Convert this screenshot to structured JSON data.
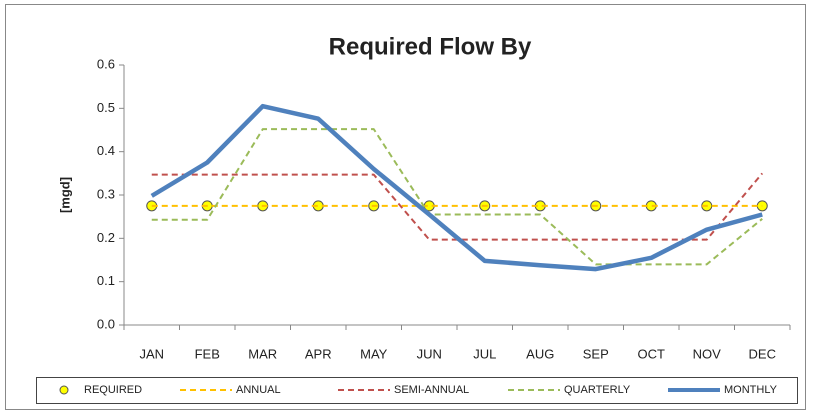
{
  "chart_data": {
    "type": "line",
    "title": "Required Flow By",
    "y_label": "[mgd]",
    "categories": [
      "JAN",
      "FEB",
      "MAR",
      "APR",
      "MAY",
      "JUN",
      "JUL",
      "AUG",
      "SEP",
      "OCT",
      "NOV",
      "DEC"
    ],
    "ylim": [
      0,
      0.6
    ],
    "yticks": [
      {
        "value": 0,
        "label": "0.0"
      },
      0.1,
      0.2,
      0.3,
      0.4,
      0.5,
      0.6
    ],
    "grid": false,
    "legend": "bottom",
    "series": [
      {
        "name": "REQUIRED",
        "color": "#ffff00",
        "marker": true,
        "values": [
          0.275,
          0.275,
          0.275,
          0.275,
          0.275,
          0.275,
          0.275,
          0.275,
          0.275,
          0.275,
          0.275,
          0.275
        ]
      },
      {
        "name": "ANNUAL",
        "color": "#ffc000",
        "dashed": true,
        "values": [
          0.275,
          0.275,
          0.275,
          0.275,
          0.275,
          0.275,
          0.275,
          0.275,
          0.275,
          0.275,
          0.275,
          0.275
        ]
      },
      {
        "name": "SEMI-ANNUAL",
        "color": "#c0504d",
        "dashed": true,
        "values": [
          0.347,
          0.347,
          0.347,
          0.347,
          0.347,
          0.197,
          0.197,
          0.197,
          0.197,
          0.197,
          0.197,
          0.35
        ]
      },
      {
        "name": "QUARTERLY",
        "color": "#9bbb59",
        "dashed": true,
        "values": [
          0.243,
          0.243,
          0.452,
          0.452,
          0.452,
          0.255,
          0.255,
          0.255,
          0.14,
          0.14,
          0.14,
          0.245
        ]
      },
      {
        "name": "MONTHLY",
        "color": "#4f81bd",
        "values": [
          0.298,
          0.375,
          0.505,
          0.476,
          0.36,
          0.255,
          0.148,
          0.138,
          0.129,
          0.155,
          0.22,
          0.255
        ]
      }
    ]
  }
}
